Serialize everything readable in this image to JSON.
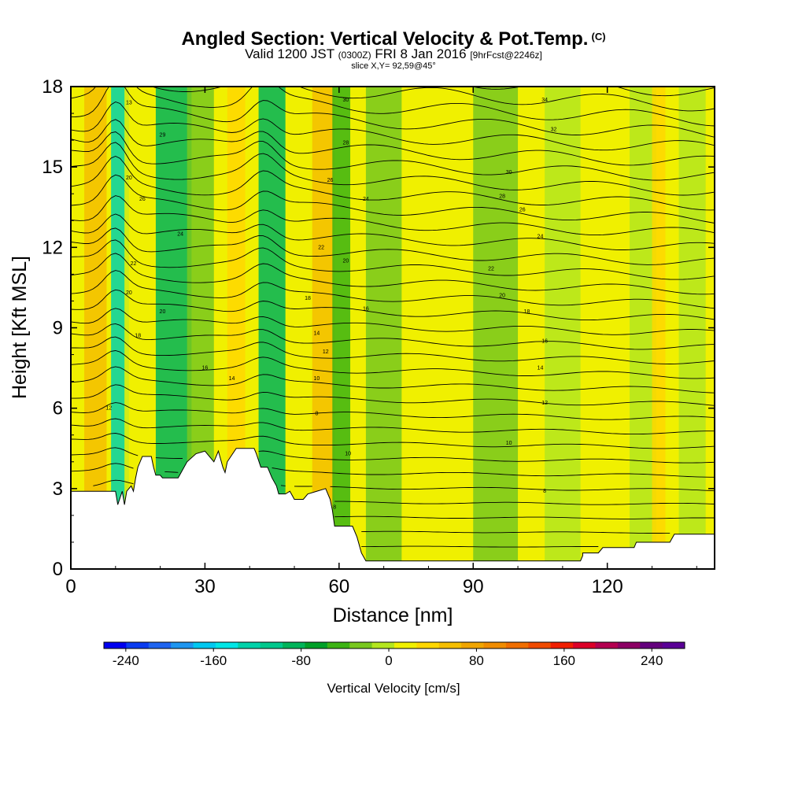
{
  "header": {
    "title": "Angled Section: Vertical Velocity & Pot.Temp.",
    "title_tag": "(C)",
    "valid_prefix": "Valid 1200 JST",
    "valid_utc": "(0300Z)",
    "valid_date": "FRI 8 Jan 2016",
    "forecast": "[9hrFcst@2246z]",
    "slice": "slice X,Y= 92,59@45°"
  },
  "chart_data": {
    "type": "heatmap",
    "title": "Angled Section: Vertical Velocity & Pot.Temp.",
    "xlabel": "Distance [nm]",
    "ylabel": "Height [Kft MSL]",
    "xlim": [
      0,
      144
    ],
    "ylim": [
      0,
      18
    ],
    "x_ticks": [
      0,
      30,
      60,
      90,
      120
    ],
    "y_ticks": [
      0,
      3,
      6,
      9,
      12,
      15,
      18
    ],
    "x_tick_labels": [
      "0",
      "30",
      "60",
      "90",
      "120"
    ],
    "y_tick_labels": [
      "0",
      "3",
      "6",
      "9",
      "12",
      "15",
      "18"
    ],
    "terrain_top_kft": [
      [
        0,
        2.9
      ],
      [
        10,
        2.9
      ],
      [
        10.5,
        2.4
      ],
      [
        11.5,
        2.9
      ],
      [
        12,
        2.4
      ],
      [
        12.5,
        2.9
      ],
      [
        13.5,
        3.1
      ],
      [
        14,
        2.9
      ],
      [
        14.5,
        3.4
      ],
      [
        15,
        3.8
      ],
      [
        16,
        4.2
      ],
      [
        18,
        4.2
      ],
      [
        18.5,
        3.8
      ],
      [
        19,
        3.5
      ],
      [
        20,
        3.5
      ],
      [
        20.5,
        3.4
      ],
      [
        24,
        3.4
      ],
      [
        25,
        3.7
      ],
      [
        26,
        4.0
      ],
      [
        28,
        4.3
      ],
      [
        30,
        4.4
      ],
      [
        32,
        4.0
      ],
      [
        33,
        4.4
      ],
      [
        34,
        3.8
      ],
      [
        34.5,
        3.6
      ],
      [
        35,
        4.0
      ],
      [
        37,
        4.5
      ],
      [
        41,
        4.5
      ],
      [
        41.5,
        4.3
      ],
      [
        42.5,
        3.8
      ],
      [
        44,
        3.8
      ],
      [
        45,
        3.4
      ],
      [
        46,
        3.1
      ],
      [
        46.5,
        2.8
      ],
      [
        48,
        2.8
      ],
      [
        49,
        2.9
      ],
      [
        50,
        2.6
      ],
      [
        51,
        2.6
      ],
      [
        52,
        2.6
      ],
      [
        53,
        2.8
      ],
      [
        55,
        2.9
      ],
      [
        57,
        3.0
      ],
      [
        58,
        2.6
      ],
      [
        58.5,
        2.2
      ],
      [
        59,
        1.6
      ],
      [
        63,
        1.6
      ],
      [
        64,
        1.2
      ],
      [
        65,
        0.6
      ],
      [
        66,
        0.3
      ],
      [
        114,
        0.3
      ],
      [
        114.5,
        0.5
      ],
      [
        114.5,
        0.6
      ],
      [
        117,
        0.6
      ],
      [
        118,
        0.6
      ],
      [
        119,
        0.8
      ],
      [
        126,
        0.8
      ],
      [
        126.5,
        1.0
      ],
      [
        134,
        1.0
      ],
      [
        135,
        1.3
      ],
      [
        144,
        1.3
      ]
    ],
    "velocity_bands": [
      {
        "x": 0.5,
        "w": 3,
        "v": 20
      },
      {
        "x": 3,
        "w": 5,
        "v": 60
      },
      {
        "x": 9,
        "w": 4,
        "v": -120
      },
      {
        "x": 12,
        "w": 4,
        "v": 20
      },
      {
        "x": 19,
        "w": 8,
        "v": -80
      },
      {
        "x": 26,
        "w": 6,
        "v": -20
      },
      {
        "x": 35,
        "w": 4,
        "v": 40
      },
      {
        "x": 42,
        "w": 6,
        "v": -80
      },
      {
        "x": 49,
        "w": 3,
        "v": 20
      },
      {
        "x": 54,
        "w": 5,
        "v": 60
      },
      {
        "x": 58.5,
        "w": 4,
        "v": -40
      },
      {
        "x": 66,
        "w": 8,
        "v": -20
      },
      {
        "x": 78,
        "w": 8,
        "v": 10
      },
      {
        "x": 90,
        "w": 10,
        "v": -20
      },
      {
        "x": 106,
        "w": 8,
        "v": -10
      },
      {
        "x": 118,
        "w": 6,
        "v": 10
      },
      {
        "x": 125,
        "w": 6,
        "v": -10
      },
      {
        "x": 130,
        "w": 3,
        "v": 30
      },
      {
        "x": 136,
        "w": 6,
        "v": -10
      }
    ],
    "theta_contour_labels": [
      {
        "x": 13,
        "y": 17.4,
        "v": "13"
      },
      {
        "x": 20.5,
        "y": 16.2,
        "v": "29"
      },
      {
        "x": 13,
        "y": 14.6,
        "v": "20"
      },
      {
        "x": 16,
        "y": 13.8,
        "v": "26"
      },
      {
        "x": 24.5,
        "y": 12.5,
        "v": "24"
      },
      {
        "x": 14,
        "y": 11.4,
        "v": "22"
      },
      {
        "x": 13,
        "y": 10.3,
        "v": "20"
      },
      {
        "x": 20.5,
        "y": 9.6,
        "v": "20"
      },
      {
        "x": 15,
        "y": 8.7,
        "v": "18"
      },
      {
        "x": 30,
        "y": 7.5,
        "v": "16"
      },
      {
        "x": 36,
        "y": 7.1,
        "v": "14"
      },
      {
        "x": 8.5,
        "y": 6.0,
        "v": "12"
      },
      {
        "x": 61.5,
        "y": 17.5,
        "v": "30"
      },
      {
        "x": 61.5,
        "y": 15.9,
        "v": "28"
      },
      {
        "x": 58,
        "y": 14.5,
        "v": "26"
      },
      {
        "x": 66,
        "y": 13.8,
        "v": "24"
      },
      {
        "x": 56,
        "y": 12.0,
        "v": "22"
      },
      {
        "x": 61.5,
        "y": 11.5,
        "v": "20"
      },
      {
        "x": 53,
        "y": 10.1,
        "v": "18"
      },
      {
        "x": 66,
        "y": 9.7,
        "v": "16"
      },
      {
        "x": 55,
        "y": 8.8,
        "v": "14"
      },
      {
        "x": 57,
        "y": 8.1,
        "v": "12"
      },
      {
        "x": 55,
        "y": 7.1,
        "v": "10"
      },
      {
        "x": 55,
        "y": 5.8,
        "v": "8"
      },
      {
        "x": 62,
        "y": 4.3,
        "v": "10"
      },
      {
        "x": 59,
        "y": 2.3,
        "v": "8"
      },
      {
        "x": 106,
        "y": 17.5,
        "v": "34"
      },
      {
        "x": 108,
        "y": 16.4,
        "v": "32"
      },
      {
        "x": 98,
        "y": 14.8,
        "v": "30"
      },
      {
        "x": 96.5,
        "y": 13.9,
        "v": "28"
      },
      {
        "x": 101,
        "y": 13.4,
        "v": "26"
      },
      {
        "x": 105,
        "y": 12.4,
        "v": "24"
      },
      {
        "x": 94,
        "y": 11.2,
        "v": "22"
      },
      {
        "x": 96.5,
        "y": 10.2,
        "v": "20"
      },
      {
        "x": 102,
        "y": 9.6,
        "v": "18"
      },
      {
        "x": 106,
        "y": 8.5,
        "v": "16"
      },
      {
        "x": 105,
        "y": 7.5,
        "v": "14"
      },
      {
        "x": 106,
        "y": 6.2,
        "v": "12"
      },
      {
        "x": 98,
        "y": 4.7,
        "v": "10"
      },
      {
        "x": 106,
        "y": 2.9,
        "v": "8"
      }
    ],
    "colorbar": {
      "title": "Vertical Velocity [cm/s]",
      "min": -260,
      "max": 270,
      "tick_values": [
        -240,
        -160,
        -80,
        0,
        80,
        160,
        240
      ],
      "tick_labels": [
        "-240",
        "-160",
        "-80",
        "0",
        "80",
        "160",
        "240"
      ],
      "colors": [
        "#0000f0",
        "#0a3cf0",
        "#1e64f0",
        "#1e96f0",
        "#00c8f0",
        "#00e6e6",
        "#00d2aa",
        "#00c88c",
        "#00b45a",
        "#00a028",
        "#3cb414",
        "#78c81e",
        "#b4e61e",
        "#f0f000",
        "#ffd700",
        "#f5be00",
        "#f0a500",
        "#f08c00",
        "#f06e00",
        "#f04b00",
        "#f01e00",
        "#dc0028",
        "#b40050",
        "#8c0064",
        "#64007d",
        "#5a0096"
      ]
    }
  }
}
